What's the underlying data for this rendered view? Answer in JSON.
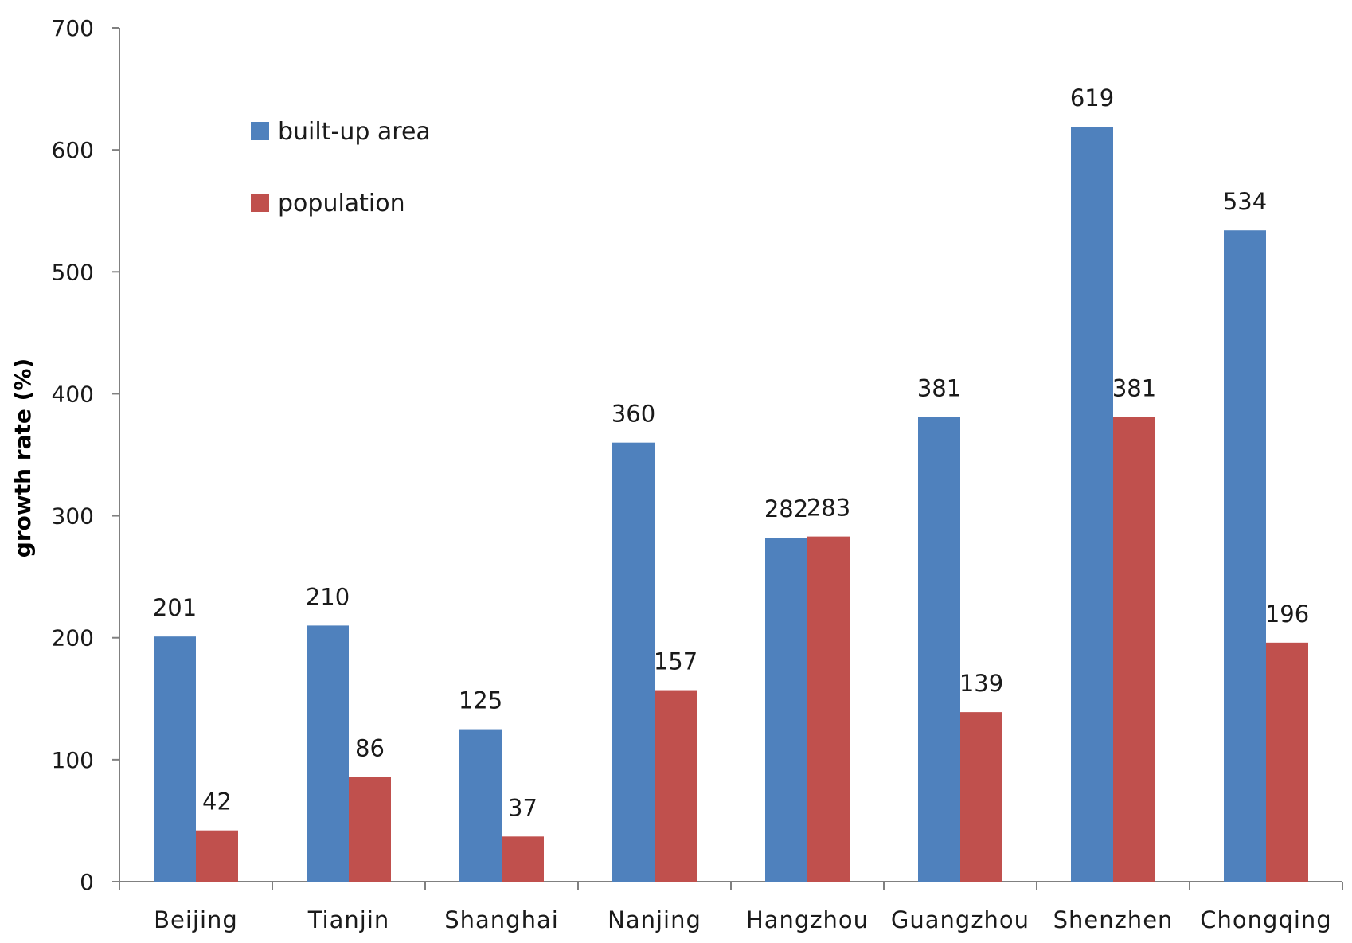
{
  "chart_data": {
    "type": "bar",
    "title": "",
    "xlabel": "",
    "ylabel": "growth rate (%)",
    "ylim": [
      0,
      700
    ],
    "yticks": [
      0,
      100,
      200,
      300,
      400,
      500,
      600,
      700
    ],
    "grid": false,
    "legend_position": "top-left",
    "categories": [
      "Beijing",
      "Tianjin",
      "Shanghai",
      "Nanjing",
      "Hangzhou",
      "Guangzhou",
      "Shenzhen",
      "Chongqing"
    ],
    "series": [
      {
        "name": "built-up area",
        "color": "#4F81BD",
        "values": [
          201,
          210,
          125,
          360,
          282,
          381,
          619,
          534
        ]
      },
      {
        "name": "population",
        "color": "#C0504D",
        "values": [
          42,
          86,
          37,
          157,
          283,
          139,
          381,
          196
        ]
      }
    ]
  }
}
